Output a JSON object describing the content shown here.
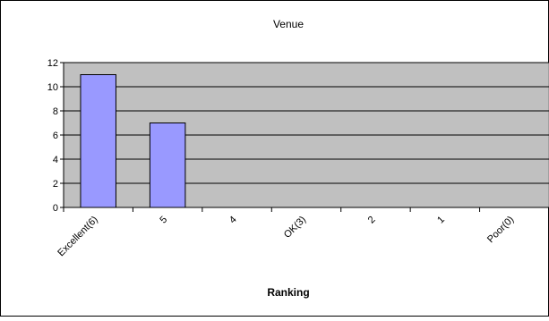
{
  "chart_data": {
    "type": "bar",
    "title": "Venue",
    "xlabel": "Ranking",
    "ylabel": "",
    "categories": [
      "Excellent(6)",
      "5",
      "4",
      "OK(3)",
      "2",
      "1",
      "Poor(0)"
    ],
    "values": [
      11,
      7,
      0,
      0,
      0,
      0,
      0
    ],
    "ylim": [
      0,
      12
    ],
    "yticks": [
      0,
      2,
      4,
      6,
      8,
      10,
      12
    ],
    "grid": true,
    "legend": "none",
    "colors": {
      "bar_fill": "#9999ff",
      "bar_stroke": "#000000",
      "plot_background": "#c0c0c0",
      "gridline": "#000000"
    }
  }
}
